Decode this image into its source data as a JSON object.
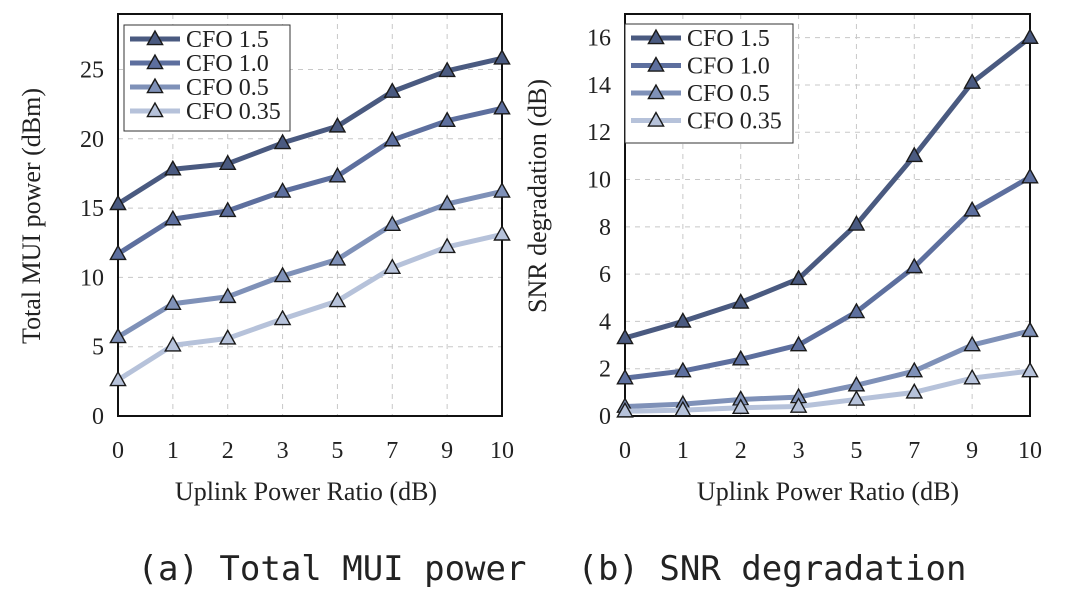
{
  "colors": {
    "CFO 1.5": "#4a5a80",
    "CFO 1.0": "#5d6f9e",
    "CFO 0.5": "#7f91b8",
    "CFO 0.35": "#b6c2da"
  },
  "chart_data": [
    {
      "type": "line",
      "title": "",
      "xlabel": "Uplink Power Ratio (dB)",
      "ylabel": "Total MUI power (dBm)",
      "categories": [
        "0",
        "1",
        "2",
        "3",
        "5",
        "7",
        "9",
        "10"
      ],
      "ylim": [
        0,
        29
      ],
      "yticks": [
        0,
        5,
        10,
        15,
        20,
        25
      ],
      "grid": true,
      "legend_position": "top-left",
      "series": [
        {
          "name": "CFO 1.5",
          "values": [
            15.3,
            17.8,
            18.2,
            19.7,
            20.9,
            23.4,
            24.9,
            25.8
          ]
        },
        {
          "name": "CFO 1.0",
          "values": [
            11.7,
            14.2,
            14.8,
            16.2,
            17.3,
            19.9,
            21.3,
            22.2
          ]
        },
        {
          "name": "CFO 0.5",
          "values": [
            5.7,
            8.1,
            8.6,
            10.1,
            11.3,
            13.8,
            15.3,
            16.2
          ]
        },
        {
          "name": "CFO 0.35",
          "values": [
            2.6,
            5.1,
            5.6,
            7.0,
            8.3,
            10.7,
            12.2,
            13.1
          ]
        }
      ],
      "caption": "(a) Total MUI power"
    },
    {
      "type": "line",
      "title": "",
      "xlabel": "Uplink Power Ratio (dB)",
      "ylabel": "SNR degradation (dB)",
      "categories": [
        "0",
        "1",
        "2",
        "3",
        "5",
        "7",
        "9",
        "10"
      ],
      "ylim": [
        0,
        17
      ],
      "yticks": [
        0,
        2,
        4,
        6,
        8,
        10,
        12,
        14,
        16
      ],
      "grid": true,
      "legend_position": "top-left",
      "series": [
        {
          "name": "CFO 1.5",
          "values": [
            3.3,
            4.0,
            4.8,
            5.8,
            8.1,
            11.0,
            14.1,
            16.0
          ]
        },
        {
          "name": "CFO 1.0",
          "values": [
            1.6,
            1.9,
            2.4,
            3.0,
            4.4,
            6.3,
            8.7,
            10.1
          ]
        },
        {
          "name": "CFO 0.5",
          "values": [
            0.4,
            0.5,
            0.7,
            0.8,
            1.3,
            1.9,
            3.0,
            3.6
          ]
        },
        {
          "name": "CFO 0.35",
          "values": [
            0.2,
            0.25,
            0.35,
            0.4,
            0.7,
            1.0,
            1.6,
            1.9
          ]
        }
      ],
      "caption": "(b) SNR degradation"
    }
  ]
}
